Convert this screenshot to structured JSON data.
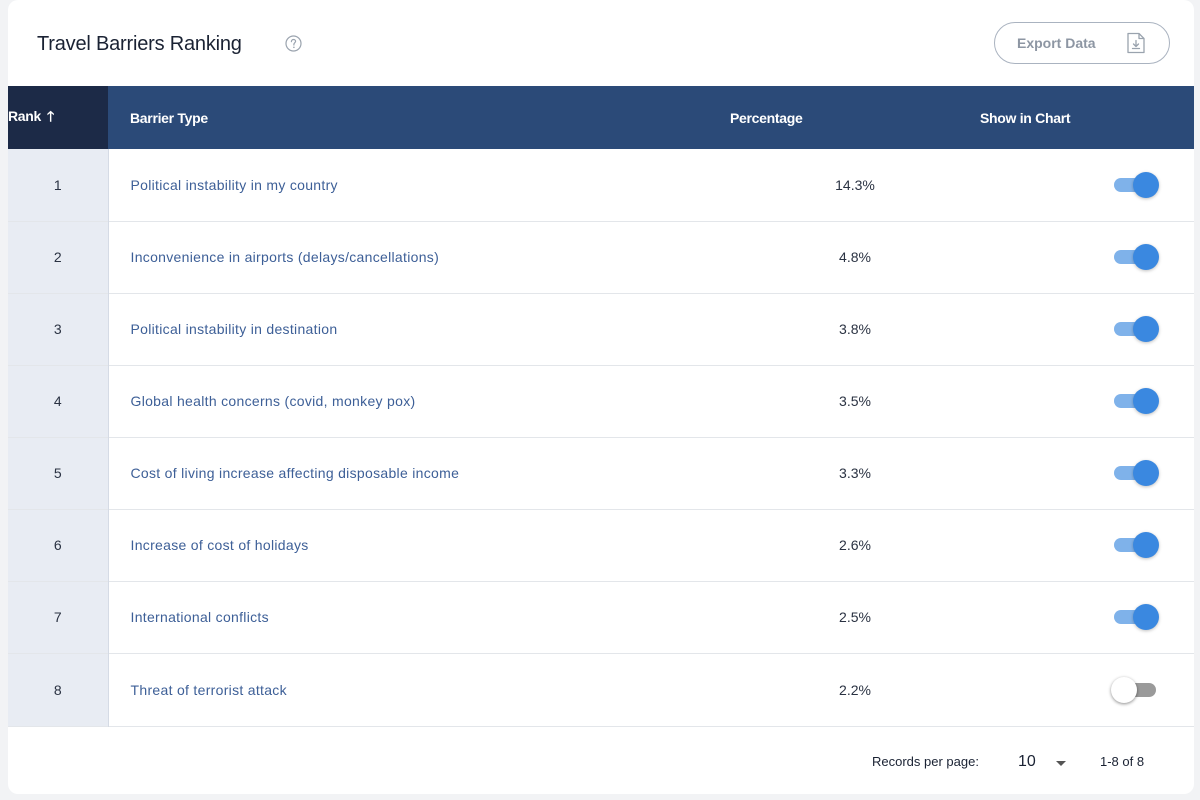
{
  "header": {
    "title": "Travel Barriers Ranking",
    "export_label": "Export Data"
  },
  "table": {
    "columns": {
      "rank": "Rank",
      "type": "Barrier Type",
      "percentage": "Percentage",
      "show": "Show in Chart"
    },
    "sort": {
      "column": "rank",
      "direction": "ascending"
    },
    "rows": [
      {
        "rank": "1",
        "type": "Political instability in my country",
        "percentage": "14.3%",
        "show": true
      },
      {
        "rank": "2",
        "type": "Inconvenience in airports (delays/cancellations)",
        "percentage": "4.8%",
        "show": true
      },
      {
        "rank": "3",
        "type": "Political instability in destination",
        "percentage": "3.8%",
        "show": true
      },
      {
        "rank": "4",
        "type": "Global health concerns (covid, monkey pox)",
        "percentage": "3.5%",
        "show": true
      },
      {
        "rank": "5",
        "type": "Cost of living increase affecting disposable income",
        "percentage": "3.3%",
        "show": true
      },
      {
        "rank": "6",
        "type": "Increase of cost of holidays",
        "percentage": "2.6%",
        "show": true
      },
      {
        "rank": "7",
        "type": "International conflicts",
        "percentage": "2.5%",
        "show": true
      },
      {
        "rank": "8",
        "type": "Threat of terrorist attack",
        "percentage": "2.2%",
        "show": false
      }
    ]
  },
  "footer": {
    "records_label": "Records per page:",
    "page_size": "10",
    "range": "1-8 of 8"
  },
  "icons": {
    "help": "help-circle-icon",
    "export": "file-download-icon",
    "sort": "arrow-up-icon",
    "caret": "caret-down-icon"
  },
  "colors": {
    "header_bg": "#2b4a78",
    "rank_header_bg": "#1c2a47",
    "rank_cell_bg": "#e8ecf3",
    "barrier_text": "#3d5f97",
    "toggle_on": "#3a88e0",
    "toggle_on_track": "#7fb2ea",
    "toggle_off_track": "#9a9a9a"
  }
}
